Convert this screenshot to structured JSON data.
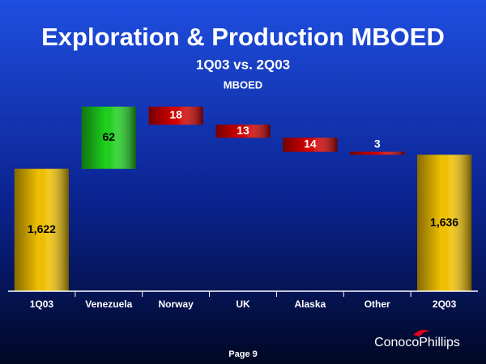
{
  "chart_data": {
    "type": "waterfall",
    "title": "Exploration & Production MBOED",
    "subtitle": "1Q03 vs. 2Q03",
    "y_label": "MBOED",
    "categories": [
      "1Q03",
      "Venezuela",
      "Norway",
      "UK",
      "Alaska",
      "Other",
      "2Q03"
    ],
    "values": [
      1622,
      62,
      -18,
      -13,
      -14,
      -3,
      1636
    ],
    "value_labels": [
      "1,622",
      "62",
      "18",
      "13",
      "14",
      "3",
      "1,636"
    ],
    "colors": [
      "#f2c200",
      "#1ed21e",
      "#d40000",
      "#d40000",
      "#d40000",
      "#d40000",
      "#f2c200"
    ],
    "ylim": [
      1500,
      1700
    ]
  },
  "footer": "Page 9",
  "logo": "ConocoPhillips"
}
